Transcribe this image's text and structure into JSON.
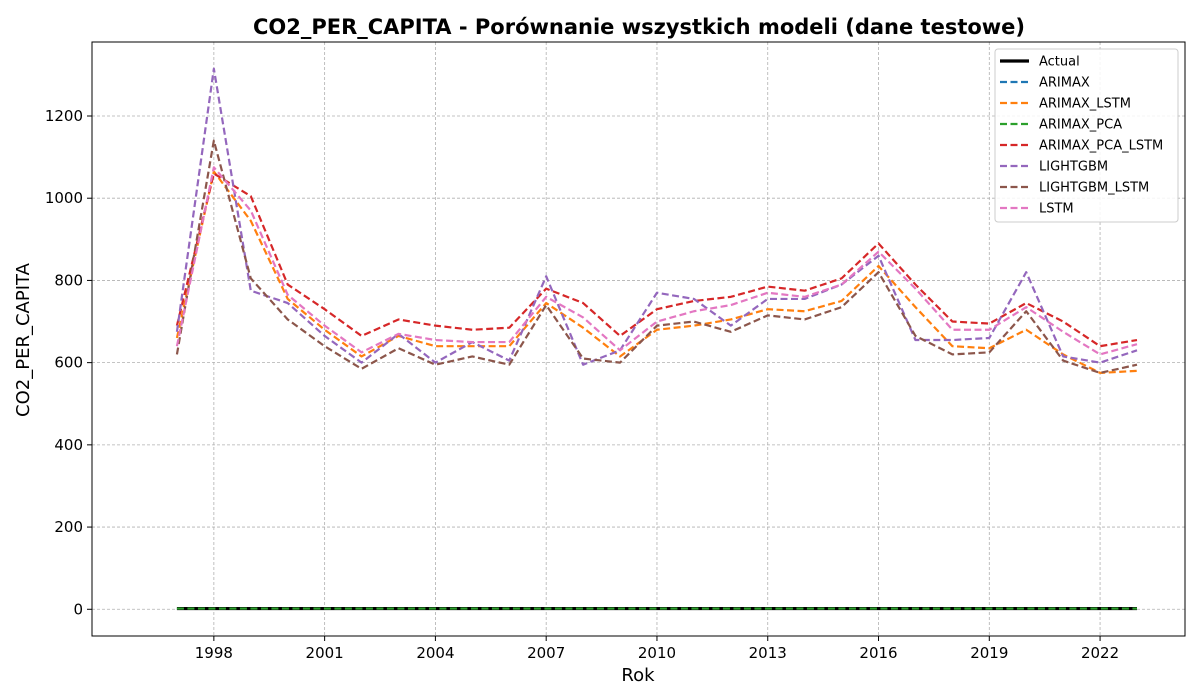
{
  "chart_data": {
    "type": "line",
    "title": "CO2_PER_CAPITA - Porównanie wszystkich modeli (dane testowe)",
    "xlabel": "Rok",
    "ylabel": "CO2_PER_CAPITA",
    "xlim": [
      1994.7,
      2024.3
    ],
    "ylim": [
      -65,
      1380
    ],
    "xticks": [
      1998,
      2001,
      2004,
      2007,
      2010,
      2013,
      2016,
      2019,
      2022
    ],
    "xtick_labels": [
      "1998",
      "2001",
      "2004",
      "2007",
      "2010",
      "2013",
      "2016",
      "2019",
      "2022"
    ],
    "yticks": [
      0,
      200,
      400,
      600,
      800,
      1000,
      1200
    ],
    "ytick_labels": [
      "0",
      "200",
      "400",
      "600",
      "800",
      "1000",
      "1200"
    ],
    "grid": true,
    "legend_position": "top-right",
    "x": [
      1997,
      1998,
      1999,
      2000,
      2001,
      2002,
      2003,
      2004,
      2005,
      2006,
      2007,
      2008,
      2009,
      2010,
      2011,
      2012,
      2013,
      2014,
      2015,
      2016,
      2017,
      2018,
      2019,
      2020,
      2021,
      2022,
      2023
    ],
    "series": [
      {
        "name": "Actual",
        "color": "#000000",
        "style": "solid",
        "values": [
          1.8,
          1.8,
          1.8,
          1.8,
          1.8,
          1.8,
          1.8,
          1.8,
          1.8,
          1.8,
          1.8,
          1.8,
          1.8,
          1.8,
          1.8,
          1.8,
          1.8,
          1.8,
          1.8,
          1.8,
          1.8,
          1.8,
          1.8,
          1.8,
          1.8,
          1.8,
          1.8
        ]
      },
      {
        "name": "ARIMAX",
        "color": "#1f77b4",
        "style": "dashed",
        "values": [
          1.8,
          1.8,
          1.8,
          1.8,
          1.8,
          1.8,
          1.8,
          1.8,
          1.8,
          1.8,
          1.8,
          1.8,
          1.8,
          1.8,
          1.8,
          1.8,
          1.8,
          1.8,
          1.8,
          1.8,
          1.8,
          1.8,
          1.8,
          1.8,
          1.8,
          1.8,
          1.8
        ]
      },
      {
        "name": "ARIMAX_LSTM",
        "color": "#ff7f0e",
        "style": "dashed",
        "values": [
          660,
          1065,
          945,
          755,
          680,
          615,
          665,
          640,
          640,
          640,
          745,
          685,
          615,
          680,
          690,
          705,
          730,
          725,
          750,
          835,
          735,
          640,
          635,
          680,
          620,
          575,
          580
        ]
      },
      {
        "name": "ARIMAX_PCA",
        "color": "#2ca02c",
        "style": "dashed",
        "values": [
          1.8,
          1.8,
          1.8,
          1.8,
          1.8,
          1.8,
          1.8,
          1.8,
          1.8,
          1.8,
          1.8,
          1.8,
          1.8,
          1.8,
          1.8,
          1.8,
          1.8,
          1.8,
          1.8,
          1.8,
          1.8,
          1.8,
          1.8,
          1.8,
          1.8,
          1.8,
          1.8
        ]
      },
      {
        "name": "ARIMAX_PCA_LSTM",
        "color": "#d62728",
        "style": "dashed",
        "values": [
          690,
          1060,
          1005,
          790,
          730,
          665,
          705,
          690,
          680,
          685,
          780,
          745,
          665,
          730,
          750,
          760,
          785,
          775,
          805,
          890,
          790,
          700,
          695,
          745,
          700,
          640,
          655
        ]
      },
      {
        "name": "LIGHTGBM",
        "color": "#9467bd",
        "style": "dashed",
        "values": [
          675,
          1315,
          775,
          745,
          665,
          600,
          670,
          600,
          650,
          605,
          810,
          595,
          630,
          770,
          755,
          690,
          755,
          755,
          790,
          860,
          655,
          655,
          660,
          820,
          615,
          600,
          630
        ]
      },
      {
        "name": "LIGHTGBM_LSTM",
        "color": "#8c564b",
        "style": "dashed",
        "values": [
          620,
          1140,
          805,
          705,
          640,
          585,
          635,
          595,
          615,
          595,
          740,
          610,
          600,
          690,
          700,
          675,
          715,
          705,
          735,
          820,
          665,
          620,
          625,
          725,
          605,
          575,
          595
        ]
      },
      {
        "name": "LSTM",
        "color": "#e377c2",
        "style": "dashed",
        "values": [
          640,
          1075,
          970,
          765,
          690,
          625,
          670,
          655,
          650,
          650,
          760,
          710,
          630,
          700,
          725,
          740,
          770,
          760,
          790,
          870,
          780,
          680,
          680,
          735,
          675,
          620,
          645
        ]
      }
    ]
  }
}
